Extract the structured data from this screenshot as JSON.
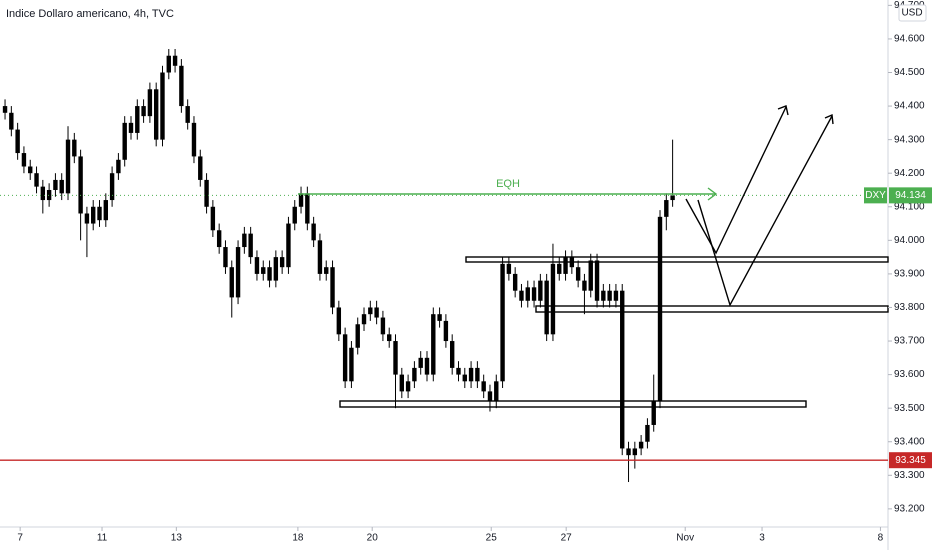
{
  "chart_data": {
    "type": "candlestick",
    "title": "Indice Dollaro americano, 4h, TVC",
    "currency": "USD",
    "symbol": "DXY",
    "last_price": 94.134,
    "level": 93.345,
    "annotation": "EQH",
    "color": "#000000",
    "grid": false,
    "xlim": [
      -0.8,
      140.2
    ],
    "ylim": [
      93.146,
      94.716
    ],
    "xticks": [
      {
        "value": 2.4,
        "label": "7"
      },
      {
        "value": 15.4,
        "label": "11"
      },
      {
        "value": 27.2,
        "label": "13"
      },
      {
        "value": 46.5,
        "label": "18"
      },
      {
        "value": 58.3,
        "label": "20"
      },
      {
        "value": 77.2,
        "label": "25"
      },
      {
        "value": 89.1,
        "label": "27"
      },
      {
        "value": 108,
        "label": "Nov"
      },
      {
        "value": 120.2,
        "label": "3"
      },
      {
        "value": 139,
        "label": "8"
      }
    ],
    "yticks": [
      {
        "value": 93.2,
        "label": "93.200"
      },
      {
        "value": 93.3,
        "label": "93.300"
      },
      {
        "value": 93.4,
        "label": "93.400"
      },
      {
        "value": 93.5,
        "label": "93.500"
      },
      {
        "value": 93.6,
        "label": "93.600"
      },
      {
        "value": 93.7,
        "label": "93.700"
      },
      {
        "value": 93.8,
        "label": "93.800"
      },
      {
        "value": 93.9,
        "label": "93.900"
      },
      {
        "value": 94.0,
        "label": "94.000"
      },
      {
        "value": 94.1,
        "label": "94.100"
      },
      {
        "value": 94.2,
        "label": "94.200"
      },
      {
        "value": 94.3,
        "label": "94.300"
      },
      {
        "value": 94.4,
        "label": "94.400"
      },
      {
        "value": 94.5,
        "label": "94.500"
      },
      {
        "value": 94.6,
        "label": "94.600"
      },
      {
        "value": 94.7,
        "label": "94.700"
      }
    ],
    "open": [
      94.4,
      94.38,
      94.33,
      94.26,
      94.22,
      94.2,
      94.16,
      94.12,
      94.15,
      94.18,
      94.14,
      94.3,
      94.25,
      94.08,
      94.05,
      94.1,
      94.06,
      94.12,
      94.2,
      94.24,
      94.35,
      94.32,
      94.4,
      94.37,
      94.45,
      94.3,
      94.5,
      94.55,
      94.52,
      94.4,
      94.35,
      94.25,
      94.18,
      94.1,
      94.03,
      93.98,
      93.92,
      93.83,
      93.98,
      94.02,
      93.95,
      93.9,
      93.92,
      93.88,
      93.95,
      93.92,
      94.05,
      94.1,
      94.14,
      94.05,
      94.0,
      93.9,
      93.92,
      93.8,
      93.72,
      93.58,
      93.68,
      93.75,
      93.78,
      93.8,
      93.77,
      93.72,
      93.7,
      93.6,
      93.55,
      93.58,
      93.62,
      93.65,
      93.6,
      93.78,
      93.76,
      93.7,
      93.62,
      93.6,
      93.58,
      93.62,
      93.58,
      93.55,
      93.52,
      93.58,
      93.93,
      93.9,
      93.85,
      93.82,
      93.86,
      93.82,
      93.88,
      93.72,
      93.93,
      93.9,
      93.95,
      93.92,
      93.88,
      93.85,
      93.94,
      93.82,
      93.85,
      93.82,
      93.85,
      93.38,
      93.36,
      93.38,
      93.4,
      93.45,
      93.52,
      94.07,
      94.12
    ],
    "high": [
      94.42,
      94.4,
      94.35,
      94.28,
      94.24,
      94.22,
      94.18,
      94.17,
      94.2,
      94.2,
      94.34,
      94.32,
      94.27,
      94.1,
      94.12,
      94.12,
      94.14,
      94.22,
      94.26,
      94.37,
      94.37,
      94.42,
      94.42,
      94.47,
      94.47,
      94.52,
      94.57,
      94.57,
      94.54,
      94.42,
      94.37,
      94.27,
      94.2,
      94.12,
      94.05,
      94.0,
      93.94,
      94.0,
      94.04,
      94.04,
      93.97,
      93.94,
      93.94,
      93.97,
      93.97,
      94.07,
      94.12,
      94.16,
      94.16,
      94.07,
      94.02,
      93.94,
      93.94,
      93.82,
      93.74,
      93.7,
      93.77,
      93.8,
      93.82,
      93.82,
      93.79,
      93.74,
      93.72,
      93.62,
      93.6,
      93.64,
      93.67,
      93.67,
      93.8,
      93.8,
      93.78,
      93.72,
      93.64,
      93.62,
      93.64,
      93.64,
      93.6,
      93.57,
      93.6,
      93.95,
      93.95,
      93.92,
      93.87,
      93.88,
      93.88,
      93.9,
      93.9,
      93.99,
      93.95,
      93.97,
      93.97,
      93.94,
      93.9,
      93.96,
      93.96,
      93.87,
      93.87,
      93.87,
      93.87,
      93.4,
      93.4,
      93.42,
      93.47,
      93.6,
      94.09,
      94.14,
      94.3
    ],
    "low": [
      94.36,
      94.31,
      94.24,
      94.2,
      94.18,
      94.14,
      94.08,
      94.1,
      94.13,
      94.12,
      94.12,
      94.23,
      94.0,
      93.95,
      94.03,
      94.04,
      94.04,
      94.1,
      94.18,
      94.22,
      94.3,
      94.3,
      94.35,
      94.35,
      94.28,
      94.28,
      94.48,
      94.5,
      94.38,
      94.33,
      94.23,
      94.16,
      94.08,
      94.01,
      93.96,
      93.9,
      93.77,
      93.81,
      93.96,
      93.93,
      93.88,
      93.88,
      93.86,
      93.86,
      93.9,
      93.9,
      94.03,
      94.08,
      94.03,
      93.98,
      93.88,
      93.88,
      93.78,
      93.7,
      93.56,
      93.56,
      93.66,
      93.73,
      93.76,
      93.75,
      93.7,
      93.68,
      93.5,
      93.53,
      93.53,
      93.56,
      93.6,
      93.58,
      93.58,
      93.74,
      93.68,
      93.6,
      93.58,
      93.56,
      93.56,
      93.56,
      93.53,
      93.49,
      93.5,
      93.56,
      93.88,
      93.83,
      93.8,
      93.8,
      93.8,
      93.8,
      93.7,
      93.7,
      93.88,
      93.88,
      93.9,
      93.86,
      93.78,
      93.83,
      93.8,
      93.8,
      93.8,
      93.8,
      93.36,
      93.28,
      93.32,
      93.36,
      93.38,
      93.43,
      93.5,
      94.03,
      94.1
    ],
    "close": [
      94.38,
      94.33,
      94.26,
      94.22,
      94.2,
      94.16,
      94.12,
      94.15,
      94.18,
      94.14,
      94.3,
      94.25,
      94.08,
      94.05,
      94.1,
      94.06,
      94.12,
      94.2,
      94.24,
      94.35,
      94.32,
      94.4,
      94.37,
      94.45,
      94.3,
      94.5,
      94.55,
      94.52,
      94.4,
      94.35,
      94.25,
      94.18,
      94.1,
      94.03,
      93.98,
      93.92,
      93.83,
      93.98,
      94.02,
      93.95,
      93.9,
      93.92,
      93.88,
      93.95,
      93.92,
      94.05,
      94.1,
      94.14,
      94.05,
      94.0,
      93.9,
      93.92,
      93.8,
      93.72,
      93.58,
      93.68,
      93.75,
      93.78,
      93.8,
      93.77,
      93.72,
      93.7,
      93.6,
      93.55,
      93.58,
      93.62,
      93.65,
      93.6,
      93.78,
      93.76,
      93.7,
      93.62,
      93.6,
      93.58,
      93.62,
      93.58,
      93.55,
      93.52,
      93.58,
      93.93,
      93.9,
      93.85,
      93.82,
      93.86,
      93.82,
      93.88,
      93.72,
      93.93,
      93.9,
      93.95,
      93.92,
      93.88,
      93.85,
      93.94,
      93.82,
      93.85,
      93.82,
      93.85,
      93.38,
      93.36,
      93.38,
      93.4,
      93.45,
      93.52,
      94.07,
      94.12,
      94.134
    ]
  }
}
